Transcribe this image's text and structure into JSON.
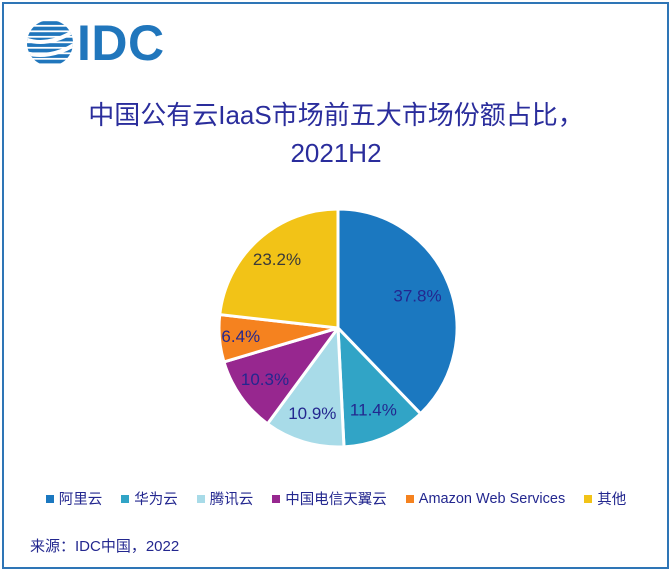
{
  "logo": {
    "text": "IDC",
    "color": "#2076BC"
  },
  "title": {
    "line1": "中国公有云IaaS市场前五大市场份额占比，",
    "line2": "2021H2",
    "color": "#2A2D9C"
  },
  "chart_data": {
    "type": "pie",
    "title": "中国公有云IaaS市场前五大市场份额占比，2021H2",
    "start_angle": "12-o-clock",
    "direction": "clockwise",
    "legend_position": "bottom",
    "slices": [
      {
        "name": "阿里云",
        "value": 37.8,
        "label": "37.8%",
        "color": "#1B78C0",
        "label_color": "#23278F",
        "label_r": 0.72
      },
      {
        "name": "华为云",
        "value": 11.4,
        "label": "11.4%",
        "color": "#31A4C6",
        "label_color": "#23278F",
        "label_r": 0.75
      },
      {
        "name": "腾讯云",
        "value": 10.9,
        "label": "10.9%",
        "color": "#A8DBE8",
        "label_color": "#23278F",
        "label_r": 0.75
      },
      {
        "name": "中国电信天翼云",
        "value": 10.3,
        "label": "10.3%",
        "color": "#97278F",
        "label_color": "#23278F",
        "label_r": 0.75
      },
      {
        "name": "Amazon Web Services",
        "value": 6.4,
        "label": "6.4%",
        "color": "#F5821F",
        "label_color": "#23278F",
        "label_r": 0.82
      },
      {
        "name": "其他",
        "value": 23.2,
        "label": "23.2%",
        "color": "#F2C317",
        "label_color": "#3A3A3A",
        "label_r": 0.77
      }
    ]
  },
  "source": {
    "text": "来源：IDC中国，2022"
  }
}
